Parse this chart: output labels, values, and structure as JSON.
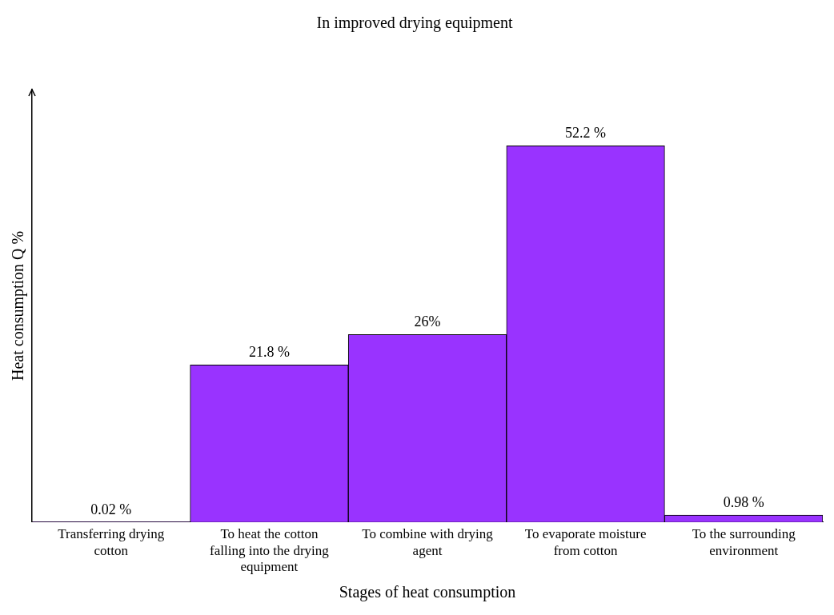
{
  "chart_data": {
    "type": "bar",
    "title": "In improved drying equipment",
    "xlabel": "Stages of heat consumption",
    "ylabel": "Heat consumption Q %",
    "categories": [
      "Transferring drying cotton",
      "To heat the cotton falling into the drying equipment",
      "To combine with drying agent",
      "To evaporate moisture from cotton",
      "To the surrounding environment"
    ],
    "values": [
      0.02,
      21.8,
      26,
      52.2,
      0.98
    ],
    "value_labels": [
      "0.02 %",
      "21.8 %",
      "26%",
      "52.2 %",
      "0.98 %"
    ],
    "color": "#9933ff",
    "grid": false,
    "legend": false
  }
}
